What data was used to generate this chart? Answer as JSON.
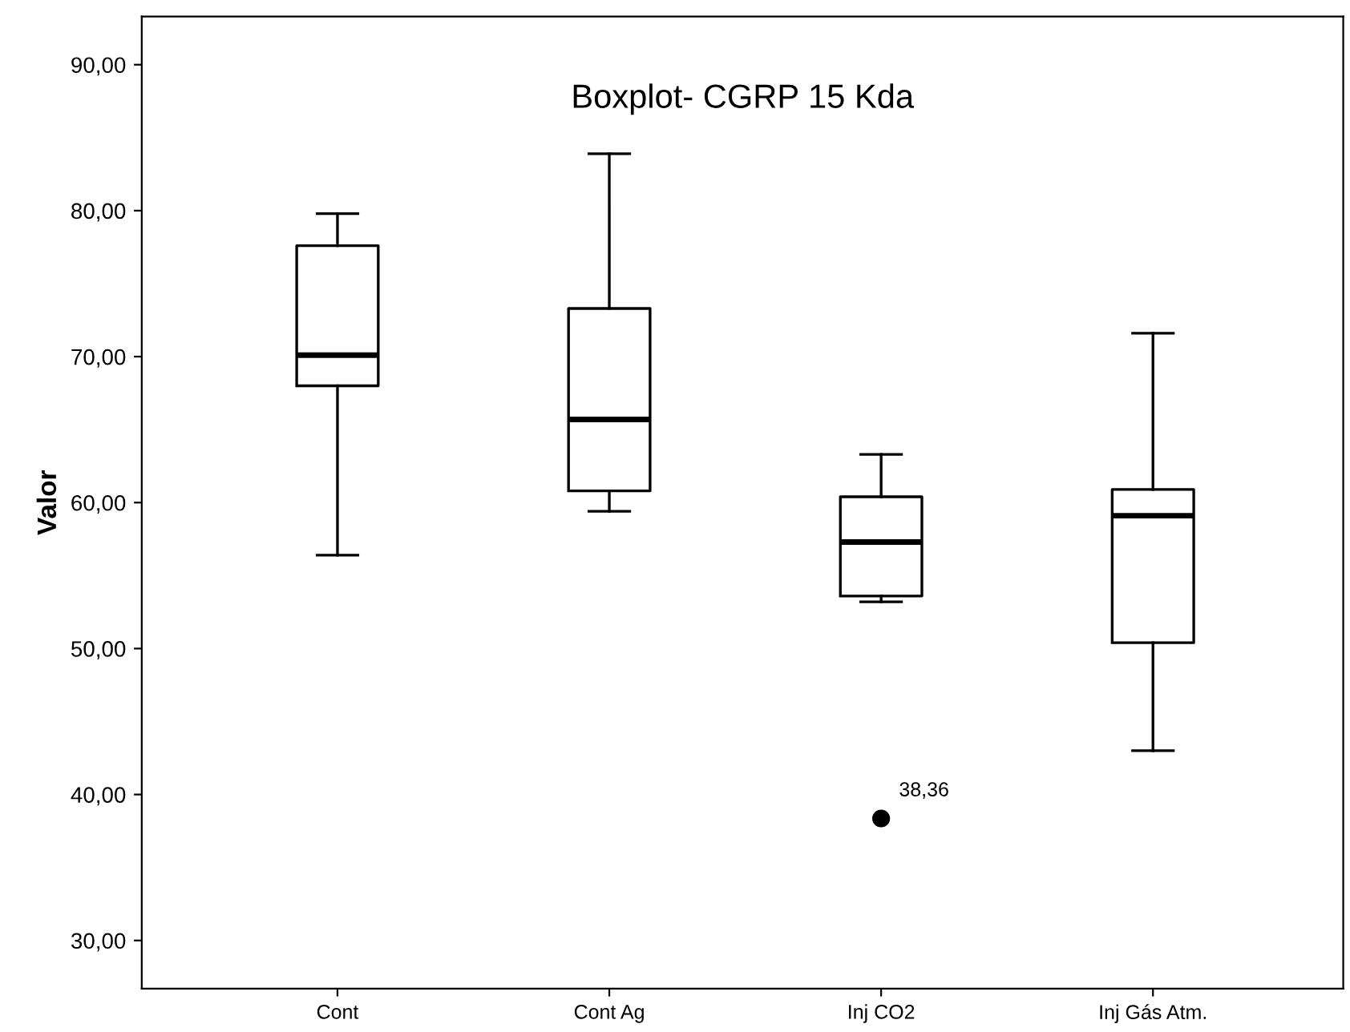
{
  "chart_data": {
    "type": "box",
    "title": "Boxplot- CGRP 15 Kda",
    "ylabel": "Valor",
    "categories": [
      "Cont",
      "Cont Ag",
      "Inj CO2",
      "Inj Gás Atm."
    ],
    "boxes": [
      {
        "low": 56.4,
        "q1": 68.0,
        "median": 70.1,
        "q3": 77.6,
        "high": 79.8
      },
      {
        "low": 59.4,
        "q1": 60.8,
        "median": 65.7,
        "q3": 73.3,
        "high": 83.9
      },
      {
        "low": 53.2,
        "q1": 53.6,
        "median": 57.3,
        "q3": 60.4,
        "high": 63.3,
        "outliers": [
          38.36
        ]
      },
      {
        "low": 43.0,
        "q1": 50.4,
        "median": 59.1,
        "q3": 60.9,
        "high": 71.6
      }
    ],
    "annotations": [
      "38,36"
    ],
    "ylim": [
      26.7,
      93.3
    ],
    "yticks": [
      {
        "value": 30,
        "label": "30,00"
      },
      {
        "value": 40,
        "label": "40,00"
      },
      {
        "value": 50,
        "label": "50,00"
      },
      {
        "value": 60,
        "label": "60,00"
      },
      {
        "value": 70,
        "label": "70,00"
      },
      {
        "value": 80,
        "label": "80,00"
      },
      {
        "value": 90,
        "label": "90,00"
      }
    ],
    "grid": false,
    "legend": false
  }
}
